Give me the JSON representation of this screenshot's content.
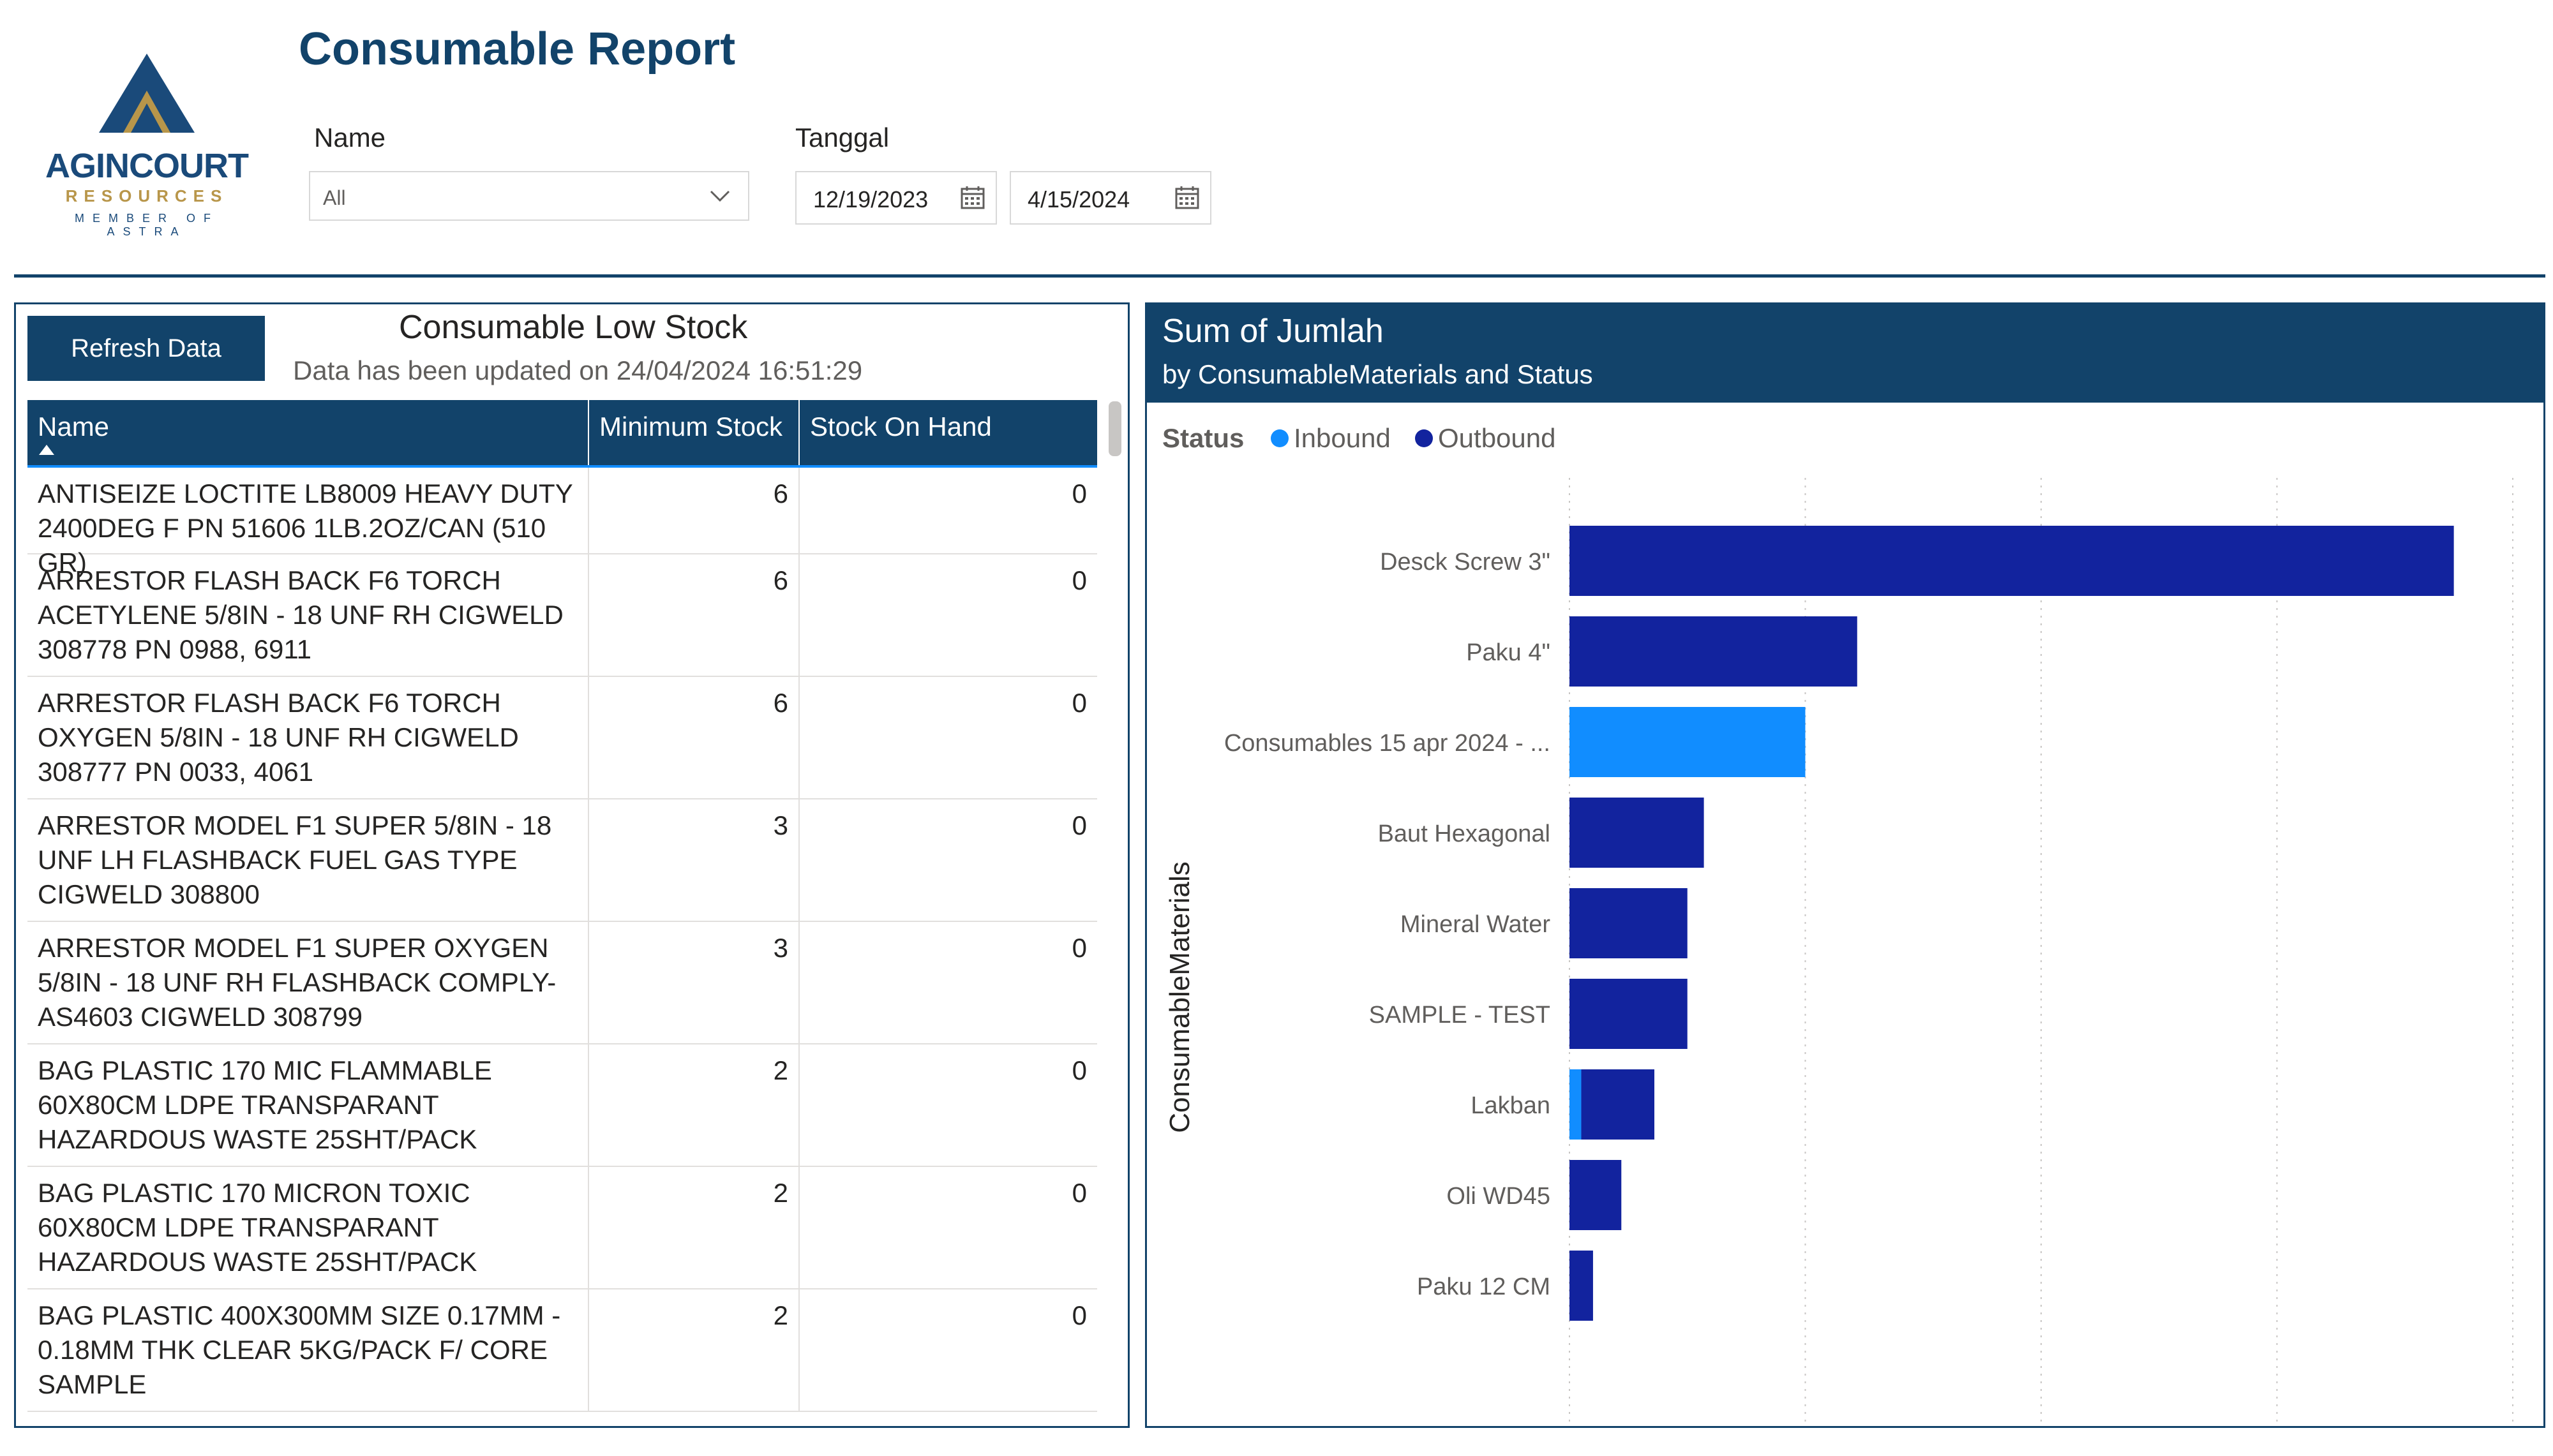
{
  "logo": {
    "name": "AGINCOURT",
    "sub": "RESOURCES",
    "member": "MEMBER OF ASTRA",
    "colors": {
      "navy": "#1a4a7a",
      "gold": "#b8964a"
    }
  },
  "header": {
    "title": "Consumable Report",
    "name_filter": {
      "label": "Name",
      "value": "All"
    },
    "date_filter": {
      "label": "Tanggal",
      "start": "12/19/2023",
      "end": "4/15/2024"
    }
  },
  "left_panel": {
    "refresh_label": "Refresh Data",
    "title": "Consumable Low Stock",
    "updated_text": "Data has been updated on 24/04/2024 16:51:29",
    "columns": [
      "Name",
      "Minimum Stock",
      "Stock On Hand"
    ],
    "rows": [
      {
        "name": "ANTISEIZE LOCTITE LB8009 HEAVY DUTY 2400DEG F PN 51606 1LB.2OZ/CAN (510 GR)",
        "min": "6",
        "onhand": "0"
      },
      {
        "name": "ARRESTOR FLASH BACK F6 TORCH ACETYLENE 5/8IN - 18 UNF RH CIGWELD 308778 PN 0988, 6911",
        "min": "6",
        "onhand": "0"
      },
      {
        "name": "ARRESTOR FLASH BACK F6 TORCH OXYGEN 5/8IN - 18 UNF RH CIGWELD 308777 PN 0033, 4061",
        "min": "6",
        "onhand": "0"
      },
      {
        "name": "ARRESTOR MODEL F1 SUPER 5/8IN - 18 UNF LH FLASHBACK FUEL GAS TYPE CIGWELD 308800",
        "min": "3",
        "onhand": "0"
      },
      {
        "name": "ARRESTOR MODEL F1 SUPER OXYGEN 5/8IN - 18 UNF RH FLASHBACK COMPLY- AS4603 CIGWELD 308799",
        "min": "3",
        "onhand": "0"
      },
      {
        "name": "BAG PLASTIC 170 MIC FLAMMABLE 60X80CM LDPE TRANSPARANT HAZARDOUS WASTE 25SHT/PACK",
        "min": "2",
        "onhand": "0"
      },
      {
        "name": "BAG PLASTIC 170 MICRON TOXIC 60X80CM LDPE TRANSPARANT HAZARDOUS WASTE 25SHT/PACK",
        "min": "2",
        "onhand": "0"
      },
      {
        "name": "BAG PLASTIC 400X300MM SIZE 0.17MM - 0.18MM THK CLEAR 5KG/PACK F/ CORE SAMPLE",
        "min": "2",
        "onhand": "0"
      }
    ]
  },
  "chart_data": {
    "type": "bar",
    "orientation": "horizontal",
    "stacked": true,
    "title": "Sum of Jumlah",
    "subtitle": "by ConsumableMaterials and Status",
    "legend_title": "Status",
    "legend_position": "top-left",
    "xlabel": "Sum of Jumlah",
    "ylabel": "ConsumableMaterials",
    "xlim": [
      0,
      400
    ],
    "xticks": [
      0,
      100,
      200,
      300,
      400
    ],
    "grid": true,
    "categories": [
      "Desck Screw 3\"",
      "Paku 4\"",
      "Consumables 15 apr 2024 - ...",
      "Baut Hexagonal",
      "Mineral Water",
      "SAMPLE - TEST",
      "Lakban",
      "Oli WD45",
      "Paku 12 CM"
    ],
    "series": [
      {
        "name": "Inbound",
        "color": "#118dff",
        "values": [
          0,
          0,
          100,
          0,
          0,
          0,
          5,
          0,
          0
        ]
      },
      {
        "name": "Outbound",
        "color": "#12239e",
        "values": [
          375,
          122,
          0,
          57,
          50,
          50,
          31,
          22,
          10
        ]
      }
    ]
  },
  "colors": {
    "navy": "#12436a",
    "accent": "#118dff",
    "outbound": "#12239e"
  }
}
